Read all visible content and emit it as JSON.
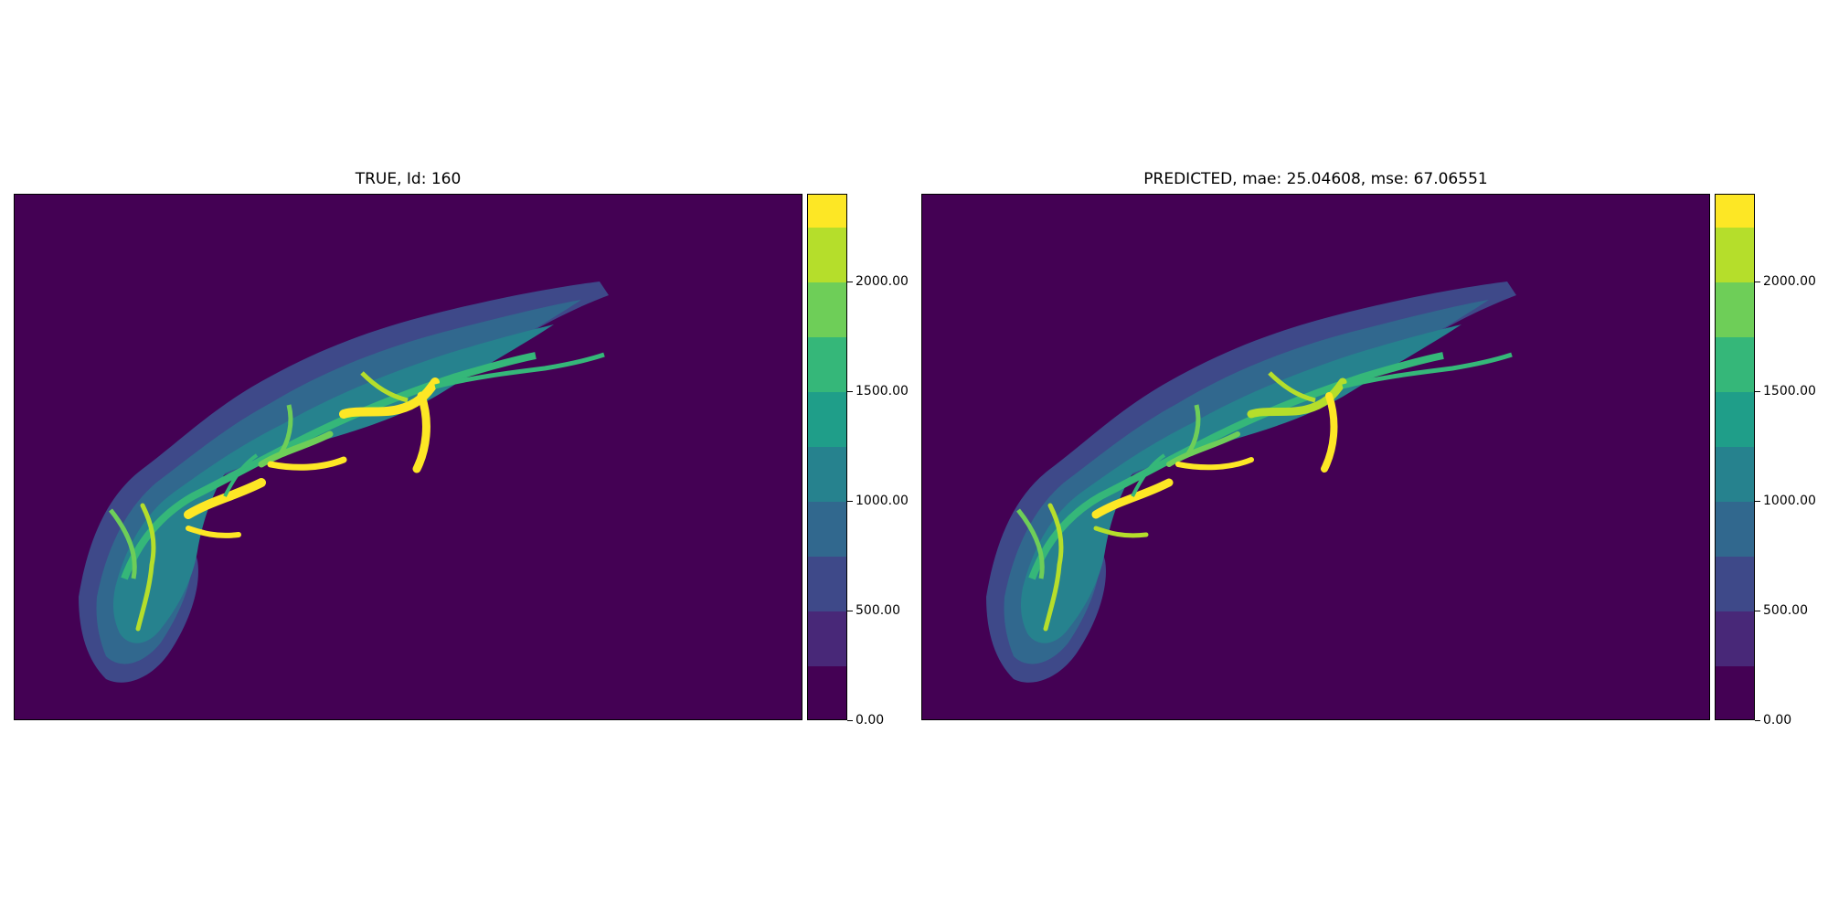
{
  "chart_data": [
    {
      "type": "heatmap",
      "title": "TRUE, Id: 160",
      "xlabel": "",
      "ylabel": "",
      "grid": false,
      "colorbar": {
        "levels": [
          0,
          250,
          500,
          750,
          1000,
          1250,
          1500,
          1750,
          2000,
          2250,
          2400
        ],
        "colors": [
          "#440154",
          "#482878",
          "#3e4989",
          "#31688e",
          "#26828e",
          "#1f9e89",
          "#35b779",
          "#6ece58",
          "#b5de2b",
          "#fde725"
        ],
        "tick_values": [
          0,
          500,
          1000,
          1500,
          2000
        ],
        "tick_labels": [
          "0.00",
          "500.00",
          "1000.00",
          "1500.00",
          "2000.00"
        ]
      }
    },
    {
      "type": "heatmap",
      "title": "PREDICTED, mae: 25.04608, mse: 67.06551",
      "xlabel": "",
      "ylabel": "",
      "grid": false,
      "colorbar": {
        "levels": [
          0,
          250,
          500,
          750,
          1000,
          1250,
          1500,
          1750,
          2000,
          2250,
          2400
        ],
        "colors": [
          "#440154",
          "#482878",
          "#3e4989",
          "#31688e",
          "#26828e",
          "#1f9e89",
          "#35b779",
          "#6ece58",
          "#b5de2b",
          "#fde725"
        ],
        "tick_values": [
          0,
          500,
          1000,
          1500,
          2000
        ],
        "tick_labels": [
          "0.00",
          "500.00",
          "1000.00",
          "1500.00",
          "2000.00"
        ]
      }
    }
  ]
}
